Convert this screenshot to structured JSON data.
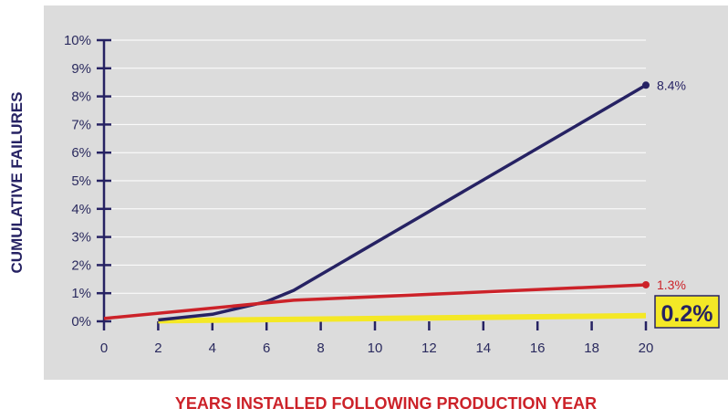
{
  "chart_data": {
    "type": "line",
    "xlabel": "YEARS INSTALLED FOLLOWING PRODUCTION YEAR",
    "ylabel": "CUMULATIVE FAILURES",
    "xlim": [
      0,
      20
    ],
    "ylim": [
      0,
      10
    ],
    "x_ticks": [
      "0",
      "2",
      "4",
      "6",
      "8",
      "10",
      "12",
      "14",
      "16",
      "18",
      "20"
    ],
    "y_ticks": [
      "0%",
      "1%",
      "2%",
      "3%",
      "4%",
      "5%",
      "6%",
      "7%",
      "8%",
      "9%",
      "10%"
    ],
    "grid": true,
    "series": [
      {
        "color": "#262263",
        "points": [
          [
            2,
            0.05
          ],
          [
            4,
            0.25
          ],
          [
            6,
            0.7
          ],
          [
            7,
            1.1
          ],
          [
            20,
            8.4
          ]
        ],
        "end_label": "8.4%"
      },
      {
        "color": "#cc2229",
        "points": [
          [
            0,
            0.1
          ],
          [
            7,
            0.75
          ],
          [
            20,
            1.3
          ]
        ],
        "end_label": "1.3%"
      },
      {
        "color": "#f4e826",
        "points": [
          [
            2,
            0.02
          ],
          [
            20,
            0.2
          ]
        ],
        "end_label": "0.2%"
      }
    ]
  },
  "colors": {
    "plot_background": "#dcdcdc",
    "axis": "#262263",
    "xlabel": "#cc2229",
    "ylabel": "#262263",
    "grid": "#ffffff"
  }
}
